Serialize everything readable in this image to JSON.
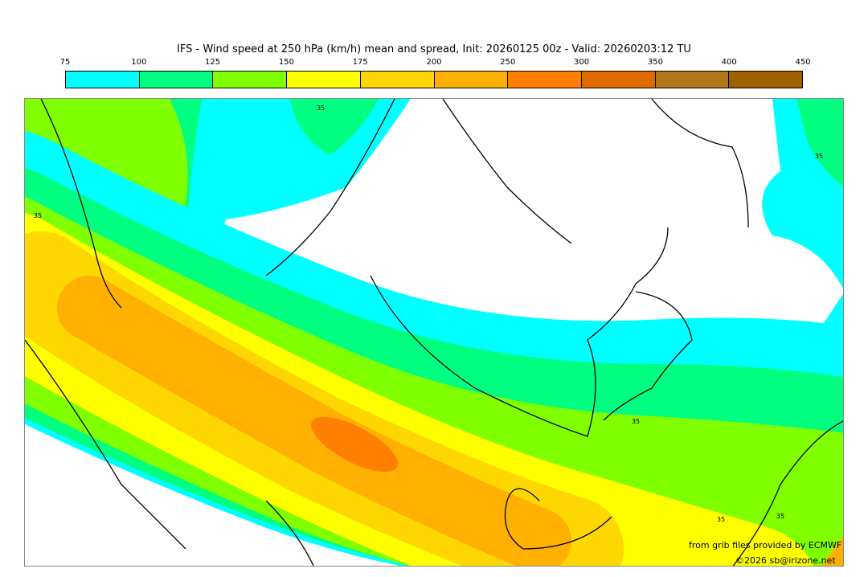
{
  "title": "IFS - Wind speed at 250 hPa (km/h) mean and spread, Init: 20260125 00z - Valid: 20260203:12 TU",
  "legend": {
    "ticks": [
      "75",
      "100",
      "125",
      "150",
      "175",
      "200",
      "250",
      "300",
      "350",
      "400",
      "450"
    ],
    "colors": [
      "#00ffff",
      "#00ff80",
      "#80ff00",
      "#ffff00",
      "#ffd700",
      "#ffb000",
      "#ff8000",
      "#e06c00",
      "#b07818",
      "#a06000"
    ]
  },
  "map": {
    "contour_label": "35",
    "background": "#ffffff"
  },
  "credits": {
    "source": "from grib files provided by ECMWF",
    "copyright": "©2026 sb@irizone.net"
  }
}
